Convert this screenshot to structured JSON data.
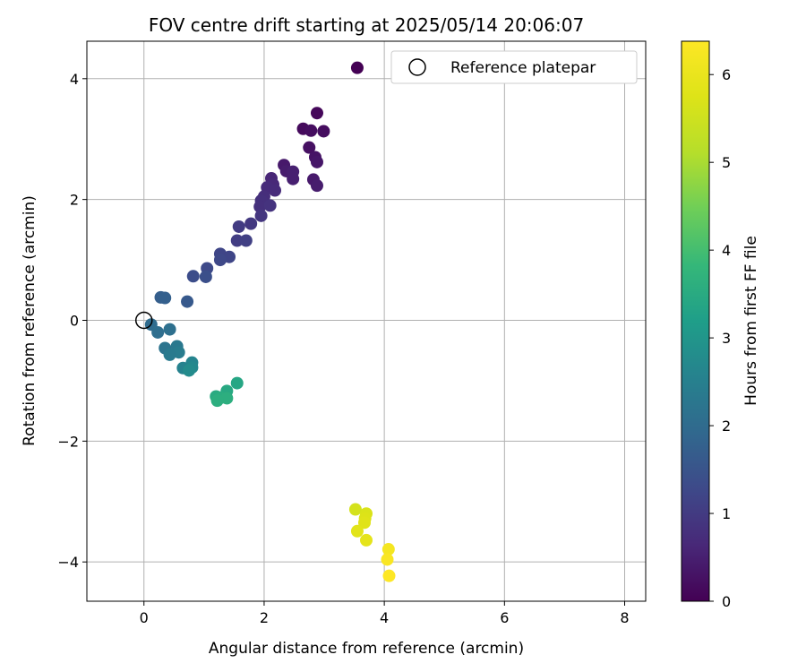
{
  "chart_data": {
    "type": "scatter",
    "title": "FOV centre drift starting at 2025/05/14 20:06:07",
    "xlabel": "Angular distance from reference (arcmin)",
    "ylabel": "Rotation from reference (arcmin)",
    "xlim": [
      -0.95,
      8.35
    ],
    "ylim": [
      -4.65,
      4.62
    ],
    "xticks": [
      0,
      2,
      4,
      6,
      8
    ],
    "yticks": [
      -4,
      -2,
      0,
      2,
      4
    ],
    "xtick_labels": [
      "0",
      "2",
      "4",
      "6",
      "8"
    ],
    "ytick_labels": [
      "−4",
      "−2",
      "0",
      "2",
      "4"
    ],
    "grid": true,
    "legend": {
      "position": "top-right",
      "entries": [
        "Reference platepar"
      ]
    },
    "reference_point": {
      "x": 0,
      "y": 0
    },
    "colorbar": {
      "label": "Hours from first FF file",
      "colormap": "viridis",
      "range": [
        0,
        6.38
      ],
      "ticks": [
        0,
        1,
        2,
        3,
        4,
        5,
        6
      ],
      "tick_labels": [
        "0",
        "1",
        "2",
        "3",
        "4",
        "5",
        "6"
      ]
    },
    "points": [
      {
        "x": 3.55,
        "y": 4.18,
        "c": 0.0
      },
      {
        "x": 2.88,
        "y": 3.43,
        "c": 0.1
      },
      {
        "x": 2.65,
        "y": 3.17,
        "c": 0.15
      },
      {
        "x": 2.78,
        "y": 3.14,
        "c": 0.2
      },
      {
        "x": 2.99,
        "y": 3.13,
        "c": 0.2
      },
      {
        "x": 2.75,
        "y": 2.86,
        "c": 0.25
      },
      {
        "x": 2.85,
        "y": 2.7,
        "c": 0.3
      },
      {
        "x": 2.88,
        "y": 2.62,
        "c": 0.35
      },
      {
        "x": 2.33,
        "y": 2.57,
        "c": 0.4
      },
      {
        "x": 2.37,
        "y": 2.47,
        "c": 0.45
      },
      {
        "x": 2.48,
        "y": 2.46,
        "c": 0.5
      },
      {
        "x": 2.48,
        "y": 2.34,
        "c": 0.5
      },
      {
        "x": 2.82,
        "y": 2.33,
        "c": 0.4
      },
      {
        "x": 2.88,
        "y": 2.23,
        "c": 0.45
      },
      {
        "x": 2.12,
        "y": 2.35,
        "c": 0.6
      },
      {
        "x": 2.15,
        "y": 2.25,
        "c": 0.65
      },
      {
        "x": 2.05,
        "y": 2.2,
        "c": 0.7
      },
      {
        "x": 2.18,
        "y": 2.15,
        "c": 0.7
      },
      {
        "x": 2.0,
        "y": 2.05,
        "c": 0.75
      },
      {
        "x": 1.95,
        "y": 1.98,
        "c": 0.8
      },
      {
        "x": 1.93,
        "y": 1.88,
        "c": 0.8
      },
      {
        "x": 2.1,
        "y": 1.9,
        "c": 0.85
      },
      {
        "x": 1.95,
        "y": 1.73,
        "c": 0.9
      },
      {
        "x": 1.78,
        "y": 1.6,
        "c": 0.95
      },
      {
        "x": 1.58,
        "y": 1.55,
        "c": 1.0
      },
      {
        "x": 1.55,
        "y": 1.32,
        "c": 1.05
      },
      {
        "x": 1.7,
        "y": 1.32,
        "c": 1.1
      },
      {
        "x": 1.27,
        "y": 1.1,
        "c": 1.2
      },
      {
        "x": 1.42,
        "y": 1.05,
        "c": 1.2
      },
      {
        "x": 1.27,
        "y": 1.0,
        "c": 1.25
      },
      {
        "x": 1.05,
        "y": 0.86,
        "c": 1.3
      },
      {
        "x": 0.82,
        "y": 0.73,
        "c": 1.35
      },
      {
        "x": 1.03,
        "y": 0.72,
        "c": 1.4
      },
      {
        "x": 0.28,
        "y": 0.38,
        "c": 1.7
      },
      {
        "x": 0.35,
        "y": 0.37,
        "c": 1.75
      },
      {
        "x": 0.72,
        "y": 0.31,
        "c": 1.6
      },
      {
        "x": 0.12,
        "y": -0.07,
        "c": 2.0
      },
      {
        "x": 0.23,
        "y": -0.2,
        "c": 2.05
      },
      {
        "x": 0.43,
        "y": -0.15,
        "c": 2.1
      },
      {
        "x": 0.35,
        "y": -0.46,
        "c": 2.2
      },
      {
        "x": 0.55,
        "y": -0.43,
        "c": 2.3
      },
      {
        "x": 0.58,
        "y": -0.53,
        "c": 2.4
      },
      {
        "x": 0.43,
        "y": -0.57,
        "c": 2.35
      },
      {
        "x": 0.8,
        "y": -0.7,
        "c": 2.6
      },
      {
        "x": 0.65,
        "y": -0.79,
        "c": 2.55
      },
      {
        "x": 0.8,
        "y": -0.78,
        "c": 2.7
      },
      {
        "x": 0.75,
        "y": -0.83,
        "c": 2.75
      },
      {
        "x": 1.55,
        "y": -1.04,
        "c": 3.4
      },
      {
        "x": 1.38,
        "y": -1.17,
        "c": 3.45
      },
      {
        "x": 1.2,
        "y": -1.26,
        "c": 3.5
      },
      {
        "x": 1.28,
        "y": -1.28,
        "c": 3.55
      },
      {
        "x": 1.38,
        "y": -1.29,
        "c": 3.6
      },
      {
        "x": 1.22,
        "y": -1.33,
        "c": 3.6
      },
      {
        "x": 3.52,
        "y": -3.13,
        "c": 5.6
      },
      {
        "x": 3.7,
        "y": -3.2,
        "c": 5.7
      },
      {
        "x": 3.68,
        "y": -3.28,
        "c": 5.75
      },
      {
        "x": 3.67,
        "y": -3.35,
        "c": 5.8
      },
      {
        "x": 3.55,
        "y": -3.49,
        "c": 5.85
      },
      {
        "x": 3.7,
        "y": -3.64,
        "c": 5.9
      },
      {
        "x": 4.07,
        "y": -3.79,
        "c": 6.2
      },
      {
        "x": 4.05,
        "y": -3.96,
        "c": 6.3
      },
      {
        "x": 4.08,
        "y": -4.23,
        "c": 6.38
      }
    ]
  }
}
